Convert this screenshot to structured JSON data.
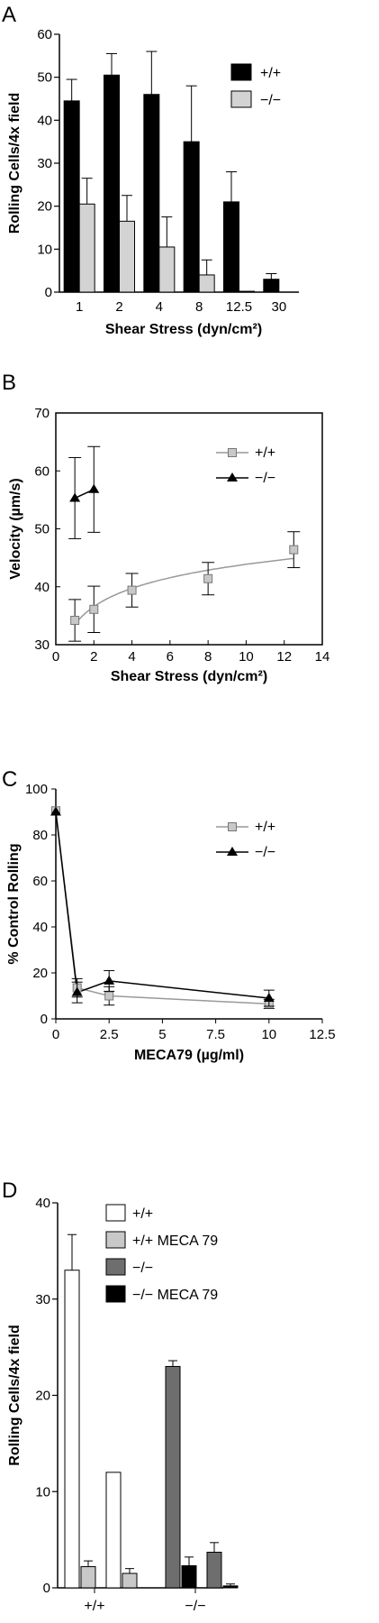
{
  "colors": {
    "black": "#000000",
    "light_gray": "#d3d3d3",
    "dark_gray": "#6e6e6e",
    "white": "#ffffff",
    "line_gray": "#999999"
  },
  "chart_data": [
    {
      "panel": "A",
      "type": "bar",
      "categories": [
        "1",
        "2",
        "4",
        "8",
        "12.5",
        "30"
      ],
      "series": [
        {
          "name": "+/+",
          "color": "#000000",
          "values": [
            44.5,
            50.5,
            46,
            35,
            21,
            3
          ],
          "errors": [
            5,
            5,
            10,
            13,
            7,
            1.3
          ]
        },
        {
          "name": "−/−",
          "color": "#d3d3d3",
          "values": [
            20.5,
            16.5,
            10.5,
            4,
            0.2,
            0
          ],
          "errors": [
            6,
            6,
            7,
            3.5,
            0,
            0
          ]
        }
      ],
      "xlabel": "Shear Stress (dyn/cm²)",
      "ylabel": "Rolling Cells/4x field",
      "ylim": [
        0,
        60
      ],
      "yticks": [
        0,
        10,
        20,
        30,
        40,
        50,
        60
      ],
      "legend": "top-right"
    },
    {
      "panel": "B",
      "type": "scatter",
      "series": [
        {
          "name": "+/+",
          "marker": "square",
          "color": "#c8c8c8",
          "x": [
            1,
            2,
            4,
            8,
            12.5
          ],
          "y": [
            34.2,
            36.1,
            39.4,
            41.4,
            46.4
          ],
          "errors": [
            3.6,
            4.0,
            2.9,
            2.8,
            3.1
          ],
          "fit": "log-curve"
        },
        {
          "name": "−/−",
          "marker": "triangle",
          "color": "#000000",
          "x": [
            1,
            2
          ],
          "y": [
            55.3,
            56.8
          ],
          "errors": [
            7,
            7.4
          ]
        }
      ],
      "xlabel": "Shear Stress (dyn/cm²)",
      "ylabel": "Velocity (µm/s)",
      "xlim": [
        0,
        14
      ],
      "ylim": [
        30,
        70
      ],
      "xticks": [
        0,
        2,
        4,
        6,
        8,
        10,
        12,
        14
      ],
      "yticks": [
        30,
        40,
        50,
        60,
        70
      ],
      "legend": "top-right"
    },
    {
      "panel": "C",
      "type": "line",
      "series": [
        {
          "name": "+/+",
          "marker": "square",
          "color": "#999999",
          "x": [
            0,
            1,
            2.5,
            10
          ],
          "y": [
            90.5,
            13.5,
            10,
            6.5
          ],
          "errors": [
            0,
            4,
            4,
            2
          ]
        },
        {
          "name": "−/−",
          "marker": "triangle",
          "color": "#000000",
          "x": [
            0,
            1,
            2.5,
            10
          ],
          "y": [
            90,
            11.5,
            16.5,
            9
          ],
          "errors": [
            0,
            4.5,
            4.5,
            3.5
          ]
        }
      ],
      "xlabel": "MECA79 (µg/ml)",
      "ylabel": "% Control Rolling",
      "xlim": [
        0,
        12.5
      ],
      "ylim": [
        0,
        100
      ],
      "xticks": [
        "0",
        "2.5",
        "5",
        "7.5",
        "10",
        "12.5"
      ],
      "yticks": [
        0,
        20,
        40,
        60,
        80,
        100
      ],
      "legend": "top-right"
    },
    {
      "panel": "D",
      "type": "bar",
      "categories": [
        "+/+",
        "−/−"
      ],
      "bars": [
        {
          "series": "+/+",
          "group": 0,
          "value": 33,
          "error": 3.7
        },
        {
          "series": "+/+ MECA 79",
          "group": 0,
          "value": 2.2,
          "error": 0.6
        },
        {
          "series": "+/+",
          "group": 0,
          "value": 12,
          "error": 0
        },
        {
          "series": "+/+ MECA 79",
          "group": 0,
          "value": 1.5,
          "error": 0.5
        },
        {
          "series": "−/−",
          "group": 1,
          "value": 23,
          "error": 0.6
        },
        {
          "series": "−/− MECA 79",
          "group": 1,
          "value": 2.3,
          "error": 0.9
        },
        {
          "series": "−/−",
          "group": 1,
          "value": 3.7,
          "error": 1.0
        },
        {
          "series": "−/− MECA 79",
          "group": 1,
          "value": 0.2,
          "error": 0.2
        }
      ],
      "legend_entries": [
        {
          "name": "+/+",
          "color": "#ffffff"
        },
        {
          "name": "+/+ MECA 79",
          "color": "#c8c8c8"
        },
        {
          "name": "−/−",
          "color": "#6e6e6e"
        },
        {
          "name": "−/− MECA 79",
          "color": "#000000"
        }
      ],
      "ylabel": "Rolling Cells/4x field",
      "ylim": [
        0,
        40
      ],
      "yticks": [
        0,
        10,
        20,
        30,
        40
      ],
      "legend": "top-right"
    }
  ],
  "panel_letters": [
    "A",
    "B",
    "C",
    "D"
  ]
}
